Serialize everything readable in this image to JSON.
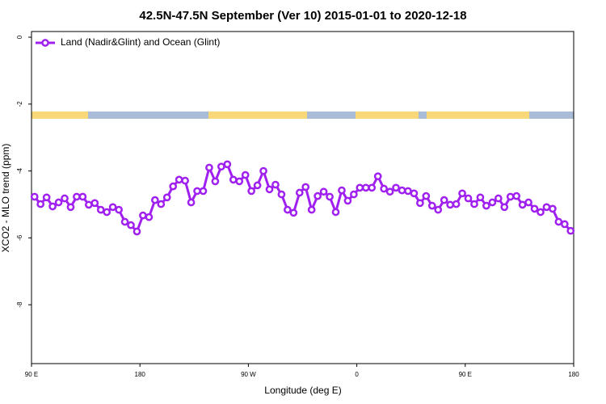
{
  "chart_data": {
    "type": "line",
    "title": "42.5N-47.5N September (Ver 10)   2015-01-01 to 2020-12-18",
    "x_label": "Longitude (deg E)",
    "y_label": "XCO2 - MLO trend (ppm)",
    "xlim": [
      90,
      540
    ],
    "xticks": [
      {
        "value": 90,
        "label": "90 E"
      },
      180,
      {
        "value": 270,
        "label": "90 W"
      },
      {
        "value": 360,
        "label": "0"
      },
      {
        "value": 450,
        "label": "90 E"
      },
      {
        "value": 540,
        "label": "180"
      }
    ],
    "ylim": [
      -9.76,
      0.17
    ],
    "yticks": [
      0,
      -2,
      -4,
      -6,
      -8
    ],
    "legend": "top-left",
    "x": [
      92.5,
      97.5,
      102.5,
      107.5,
      112.5,
      117.5,
      122.5,
      127.5,
      132.5,
      137.5,
      142.5,
      147.5,
      152.5,
      157.5,
      162.5,
      167.5,
      172.5,
      177.5,
      182.5,
      187.5,
      192.5,
      197.5,
      202.5,
      207.5,
      212.5,
      217.5,
      222.5,
      227.5,
      232.5,
      237.5,
      242.5,
      247.5,
      252.5,
      257.5,
      262.5,
      267.5,
      272.5,
      277.5,
      282.5,
      287.5,
      292.5,
      297.5,
      302.5,
      307.5,
      312.5,
      317.5,
      322.5,
      327.5,
      332.5,
      337.5,
      342.5,
      347.5,
      352.5,
      357.5,
      362.5,
      367.5,
      372.5,
      377.5,
      382.5,
      387.5,
      392.5,
      397.5,
      402.5,
      407.5,
      412.5,
      417.5,
      422.5,
      427.5,
      432.5,
      437.5,
      442.5,
      447.5,
      452.5,
      457.5,
      462.5,
      467.5,
      472.5,
      477.5,
      482.5,
      487.5,
      492.5,
      497.5,
      502.5,
      507.5,
      512.5,
      517.5,
      522.5,
      527.5,
      532.5,
      537.5
    ],
    "series": [
      {
        "name": "Land (Nadir&Glint) and Ocean (Glint)",
        "color": "#a020f0",
        "values": [
          -4.77,
          -4.99,
          -4.79,
          -5.06,
          -4.94,
          -4.82,
          -5.08,
          -4.77,
          -4.77,
          -5.01,
          -4.96,
          -5.16,
          -5.23,
          -5.08,
          -5.16,
          -5.52,
          -5.62,
          -5.81,
          -5.33,
          -5.38,
          -4.87,
          -4.99,
          -4.79,
          -4.46,
          -4.26,
          -4.29,
          -4.94,
          -4.6,
          -4.6,
          -3.9,
          -4.31,
          -3.87,
          -3.8,
          -4.26,
          -4.31,
          -4.12,
          -4.6,
          -4.43,
          -4.0,
          -4.55,
          -4.41,
          -4.7,
          -5.16,
          -5.25,
          -4.65,
          -4.48,
          -5.16,
          -4.75,
          -4.62,
          -4.77,
          -5.23,
          -4.58,
          -4.89,
          -4.7,
          -4.5,
          -4.5,
          -4.5,
          -4.16,
          -4.53,
          -4.62,
          -4.5,
          -4.58,
          -4.6,
          -4.67,
          -4.96,
          -4.75,
          -5.04,
          -5.16,
          -4.87,
          -5.01,
          -4.99,
          -4.67,
          -4.82,
          -4.99,
          -4.79,
          -5.04,
          -4.94,
          -4.82,
          -5.08,
          -4.77,
          -4.75,
          -5.01,
          -4.94,
          -5.13,
          -5.23,
          -5.08,
          -5.13,
          -5.52,
          -5.59,
          -5.79
        ]
      }
    ]
  }
}
